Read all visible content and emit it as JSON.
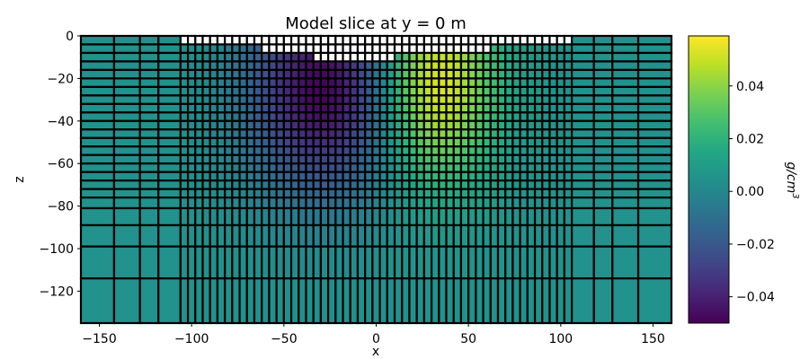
{
  "chart_data": {
    "type": "heatmap",
    "title": "Model slice at y = 0 m",
    "xlabel": "x",
    "ylabel": "z",
    "xlim": [
      -160,
      160
    ],
    "ylim": [
      -135,
      0
    ],
    "x_ticks": [
      -150,
      -100,
      -50,
      0,
      50,
      100,
      150
    ],
    "y_ticks": [
      0,
      -20,
      -40,
      -60,
      -80,
      -100,
      -120
    ],
    "x_edges": [
      -160,
      -142,
      -128,
      -118,
      -106,
      -102,
      -98,
      -94,
      -90,
      -86,
      -82,
      -78,
      -74,
      -70,
      -66,
      -62,
      -58,
      -54,
      -50,
      -46,
      -42,
      -38,
      -34,
      -30,
      -26,
      -22,
      -18,
      -14,
      -10,
      -6,
      -2,
      2,
      6,
      10,
      14,
      18,
      22,
      26,
      30,
      34,
      38,
      42,
      46,
      50,
      54,
      58,
      62,
      66,
      70,
      74,
      78,
      82,
      86,
      90,
      94,
      98,
      102,
      106,
      118,
      128,
      142,
      160
    ],
    "z_edges": [
      0,
      -4,
      -8,
      -12,
      -16,
      -20,
      -24,
      -28,
      -32,
      -36,
      -40,
      -44,
      -48,
      -52,
      -56,
      -60,
      -64,
      -68,
      -72,
      -76,
      -81,
      -89,
      -99,
      -114,
      -135
    ],
    "surface": [
      {
        "x_range": [
          -106,
          106
        ],
        "z": -4
      },
      {
        "x_range": [
          -62,
          62
        ],
        "z": -8
      },
      {
        "x_range": [
          -34,
          10
        ],
        "z": -14
      }
    ],
    "anomalies": [
      {
        "sign": "negative",
        "center": [
          -28,
          -25
        ],
        "radius": [
          40,
          48
        ],
        "peak": -0.05
      },
      {
        "sign": "positive",
        "center": [
          32,
          -22
        ],
        "radius": [
          32,
          44
        ],
        "peak": 0.058
      }
    ],
    "background_value": 0.005,
    "colorbar": {
      "label": "g/cm3",
      "colormap": "viridis",
      "vmin": -0.05,
      "vmax": 0.059,
      "ticks": [
        "0.04",
        "0.02",
        "0.00",
        "−0.02",
        "−0.04"
      ],
      "tick_values": [
        0.04,
        0.02,
        0.0,
        -0.02,
        -0.04
      ]
    }
  }
}
